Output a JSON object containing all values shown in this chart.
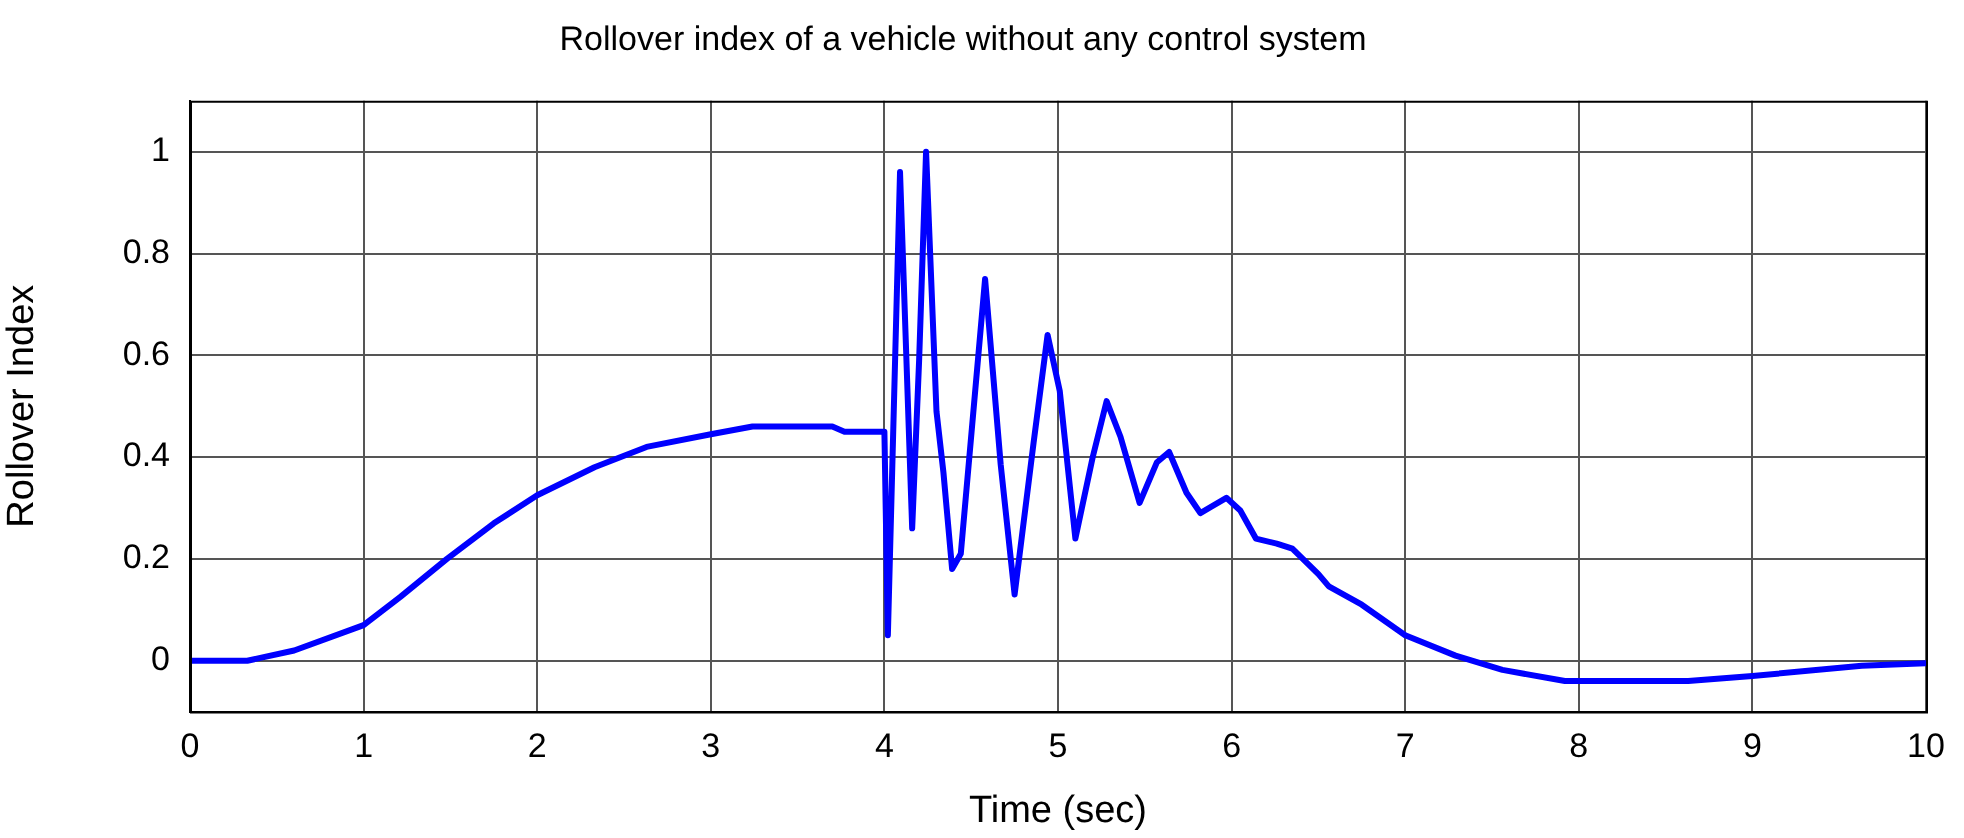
{
  "chart_data": {
    "type": "line",
    "title": "Rollover index of a vehicle without any control system",
    "xlabel": "Time (sec)",
    "ylabel": "Rollover Index",
    "xlim": [
      0,
      10
    ],
    "xticks": [
      0,
      1,
      2,
      3,
      4,
      5,
      6,
      7,
      8,
      9,
      10
    ],
    "ylim": [
      -0.1,
      1.1
    ],
    "yticks": [
      0,
      0.2,
      0.4,
      0.6,
      0.8,
      1
    ],
    "grid": true,
    "legend": false,
    "marker": "none",
    "line_style": "solid",
    "series": [
      {
        "color": "#0000ff",
        "x": [
          0,
          0.33,
          0.6,
          1.0,
          1.21,
          1.48,
          1.75,
          2.0,
          2.33,
          2.63,
          3.0,
          3.24,
          3.7,
          3.77,
          4.0,
          4.02,
          4.09,
          4.16,
          4.2,
          4.24,
          4.3,
          4.34,
          4.39,
          4.44,
          4.58,
          4.67,
          4.75,
          4.86,
          4.94,
          5.01,
          5.1,
          5.2,
          5.28,
          5.36,
          5.47,
          5.57,
          5.64,
          5.74,
          5.82,
          5.97,
          6.05,
          6.14,
          6.26,
          6.35,
          6.5,
          6.56,
          6.75,
          7.0,
          7.29,
          7.56,
          7.92,
          8.63,
          9.0,
          9.63,
          10
        ],
        "values": [
          0,
          0,
          0.02,
          0.07,
          0.125,
          0.2,
          0.27,
          0.325,
          0.38,
          0.42,
          0.445,
          0.46,
          0.46,
          0.45,
          0.45,
          0.05,
          0.96,
          0.26,
          0.59,
          1.0,
          0.49,
          0.37,
          0.18,
          0.21,
          0.75,
          0.385,
          0.13,
          0.43,
          0.64,
          0.53,
          0.24,
          0.4,
          0.51,
          0.44,
          0.31,
          0.39,
          0.41,
          0.33,
          0.29,
          0.32,
          0.295,
          0.24,
          0.23,
          0.22,
          0.17,
          0.146,
          0.11,
          0.05,
          0.01,
          -0.018,
          -0.04,
          -0.04,
          -0.03,
          -0.01,
          -0.005
        ]
      }
    ]
  }
}
